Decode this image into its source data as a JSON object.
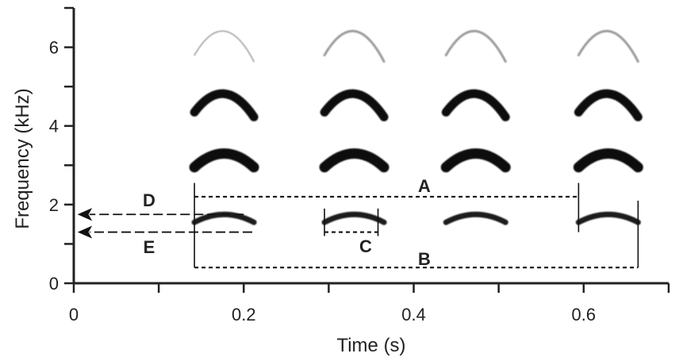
{
  "chart_data": {
    "type": "spectrogram",
    "xlabel": "Time (s)",
    "ylabel": "Frequency (kHz)",
    "xlim": [
      0,
      0.7
    ],
    "ylim": [
      0,
      7
    ],
    "xticks": [
      0,
      0.1,
      0.2,
      0.3,
      0.4,
      0.5,
      0.6,
      0.7
    ],
    "xtick_labels": [
      "0",
      "",
      "0.2",
      "",
      "0.4",
      "",
      "0.6",
      ""
    ],
    "yticks": [
      0,
      1,
      2,
      3,
      4,
      5,
      6,
      7
    ],
    "ytick_labels": [
      "0",
      "",
      "2",
      "",
      "4",
      "",
      "6",
      ""
    ],
    "grid": false,
    "note_starts": [
      0.142,
      0.295,
      0.438,
      0.594
    ],
    "note_duration": 0.07,
    "harmonics": [
      {
        "harmonic": 1,
        "start_khz": 1.55,
        "peak_khz": 1.75,
        "color": "#1a1a1a"
      },
      {
        "harmonic": 2,
        "start_khz": 2.95,
        "peak_khz": 3.3,
        "color": "#111111"
      },
      {
        "harmonic": 3,
        "start_khz": 4.35,
        "peak_khz": 4.85,
        "color": "#111111"
      },
      {
        "harmonic": 4,
        "start_khz": 5.8,
        "peak_khz": 6.45,
        "color": "#9a9a9a"
      }
    ],
    "annotations": [
      {
        "label": "A",
        "x_start": 0.142,
        "x_end": 0.594,
        "y_khz": 2.2
      },
      {
        "label": "B",
        "x_start": 0.142,
        "x_end": 0.664,
        "y_khz": 0.4
      },
      {
        "label": "C",
        "x_start": 0.295,
        "x_end": 0.358,
        "y_khz": 1.3
      },
      {
        "label": "D",
        "x_from": 0.2,
        "x_to": 0,
        "y_khz": 1.75
      },
      {
        "label": "E",
        "x_from": 0.21,
        "x_to": 0,
        "y_khz": 1.3
      }
    ]
  }
}
